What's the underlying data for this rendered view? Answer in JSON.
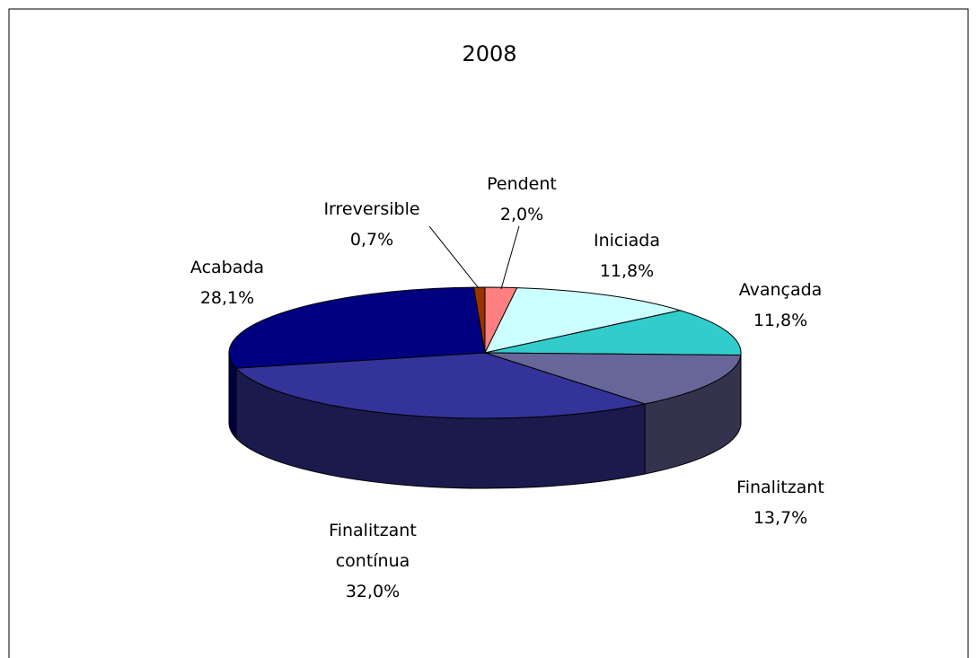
{
  "chart_data": {
    "type": "pie",
    "title": "2008",
    "categories": [
      "Pendent",
      "Iniciada",
      "Avançada",
      "Finalitzant",
      "Finalitzant contínua",
      "Acabada",
      "Irreversible"
    ],
    "values": [
      2.0,
      11.8,
      11.8,
      13.7,
      32.0,
      28.1,
      0.7
    ],
    "value_labels": [
      "2,0%",
      "11,8%",
      "11,8%",
      "13,7%",
      "32,0%",
      "28,1%",
      "0,7%"
    ],
    "colors": [
      "#ff8080",
      "#ccffff",
      "#33cccc",
      "#666699",
      "#333399",
      "#000080",
      "#993300"
    ]
  }
}
